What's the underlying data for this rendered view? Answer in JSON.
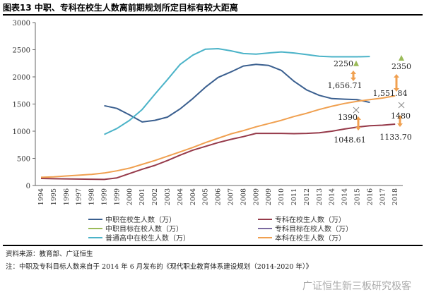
{
  "header": {
    "title": "图表13 中职、专科在校生人数离前期规划所定目标有较大距离"
  },
  "chart_data": {
    "type": "line",
    "title": "图表13 中职、专科在校生人数离前期规划所定目标有较大距离",
    "xlabel": "",
    "ylabel": "",
    "ylim": [
      0,
      3000
    ],
    "yticks": [
      "0",
      "500",
      "1000",
      "1500",
      "2000",
      "2500",
      "3000"
    ],
    "x_tick_labels": [
      "1994",
      "1995",
      "1996",
      "1997",
      "1998",
      "1999",
      "1999",
      "2000",
      "2001",
      "2002",
      "2003",
      "2004",
      "2004",
      "2005",
      "2006",
      "2007",
      "2008",
      "2009",
      "2009",
      "2010",
      "2011",
      "2012",
      "2013",
      "2014",
      "2014",
      "2015",
      "2016",
      "2017",
      "2018"
    ],
    "series": [
      {
        "name": "中职在校生人数（万）",
        "color": "#3a5f8f",
        "start_index": 5,
        "values": [
          1470,
          1420,
          1300,
          1170,
          1200,
          1260,
          1410,
          1600,
          1810,
          1990,
          2090,
          2200,
          2230,
          2210,
          2120,
          1920,
          1760,
          1660,
          1600,
          1590,
          1580,
          1530
        ]
      },
      {
        "name": "专科在校生人数（万）",
        "color": "#963a4a",
        "start_index": 0,
        "values": [
          130,
          125,
          122,
          118,
          115,
          112,
          140,
          220,
          300,
          370,
          460,
          560,
          650,
          720,
          790,
          850,
          900,
          960,
          960,
          960,
          955,
          960,
          970,
          1000,
          1040,
          1075,
          1100,
          1110,
          1130
        ]
      },
      {
        "name": "普通高中在校生人数（万）",
        "color": "#4bb3c8",
        "start_index": 5,
        "values": [
          940,
          1050,
          1200,
          1400,
          1680,
          1950,
          2230,
          2400,
          2510,
          2520,
          2480,
          2430,
          2420,
          2440,
          2460,
          2440,
          2410,
          2380,
          2370,
          2370,
          2370,
          2375
        ]
      },
      {
        "name": "本科在校生人数（万）",
        "color": "#f0a050",
        "start_index": 0,
        "values": [
          150,
          160,
          175,
          190,
          205,
          230,
          270,
          320,
          390,
          460,
          540,
          620,
          700,
          790,
          870,
          950,
          1010,
          1080,
          1140,
          1200,
          1270,
          1330,
          1400,
          1460,
          1510,
          1550,
          1580,
          1610,
          1650
        ]
      },
      {
        "name": "中职目标在校人数（万）",
        "color": "#9bbb59",
        "marker": "triangle",
        "points": [
          {
            "year": "2015",
            "value": 2250
          },
          {
            "year": "2020",
            "value": 2350
          }
        ]
      },
      {
        "name": "专科目标在校人数（万）",
        "color": "#7a6aa0",
        "marker": "x",
        "points": [
          {
            "year": "2015",
            "value": 1390
          },
          {
            "year": "2020",
            "value": 1480
          }
        ]
      }
    ],
    "annotations": [
      "2250",
      "2350",
      "1,656.71",
      "1,551.84",
      "1390",
      "1480",
      "1048.61",
      "1133.70"
    ],
    "legend": "bottom"
  },
  "legend": [
    "中职在校生人数（万）",
    "专科在校生人数（万）",
    "中职目标在校人数（万）",
    "专科目标在校人数（万）",
    "普通高中在校生人数（万）",
    "本科在校生人数（万）"
  ],
  "notes": {
    "source": "资料来源：教育部、广证恒生",
    "note": "注：中职及专科目标人数来自于 2014 年 6 月发布的《现代职业教育体系建设规划（2014-2020 年）》"
  },
  "watermark": "广证恒生新三板研究极客"
}
